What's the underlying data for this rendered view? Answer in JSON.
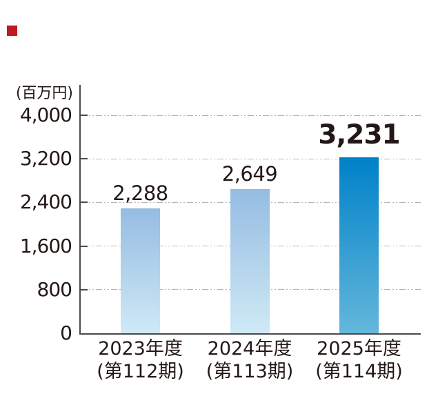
{
  "accent_square_color": "#bf1a20",
  "chart_data": {
    "type": "bar",
    "title": "",
    "unit_label": "(百万円)",
    "categories": [
      {
        "line1": "2023年度",
        "line2": "(第112期)"
      },
      {
        "line1": "2024年度",
        "line2": "(第113期)"
      },
      {
        "line1": "2025年度",
        "line2": "(第114期)"
      }
    ],
    "values": [
      2288,
      2649,
      3231
    ],
    "value_labels": [
      "2,288",
      "2,649",
      "3,231"
    ],
    "emphasized_index": 2,
    "ylim": [
      0,
      4000
    ],
    "yticks": [
      0,
      800,
      1600,
      2400,
      3200,
      4000
    ],
    "ytick_labels": [
      "0",
      "800",
      "1,600",
      "2,400",
      "3,200",
      "4,000"
    ],
    "grid": "horizontal dash-dot lines at every tick",
    "legend": "none",
    "colors": {
      "bar_default_top": "#95bce2",
      "bar_default_bottom": "#cfe9f5",
      "bar_emphasis_top": "#0081c8",
      "bar_emphasis_bottom": "#64b7db",
      "axis": "#4a4a4a",
      "grid": "#b4b4b4",
      "text": "#231815"
    }
  }
}
